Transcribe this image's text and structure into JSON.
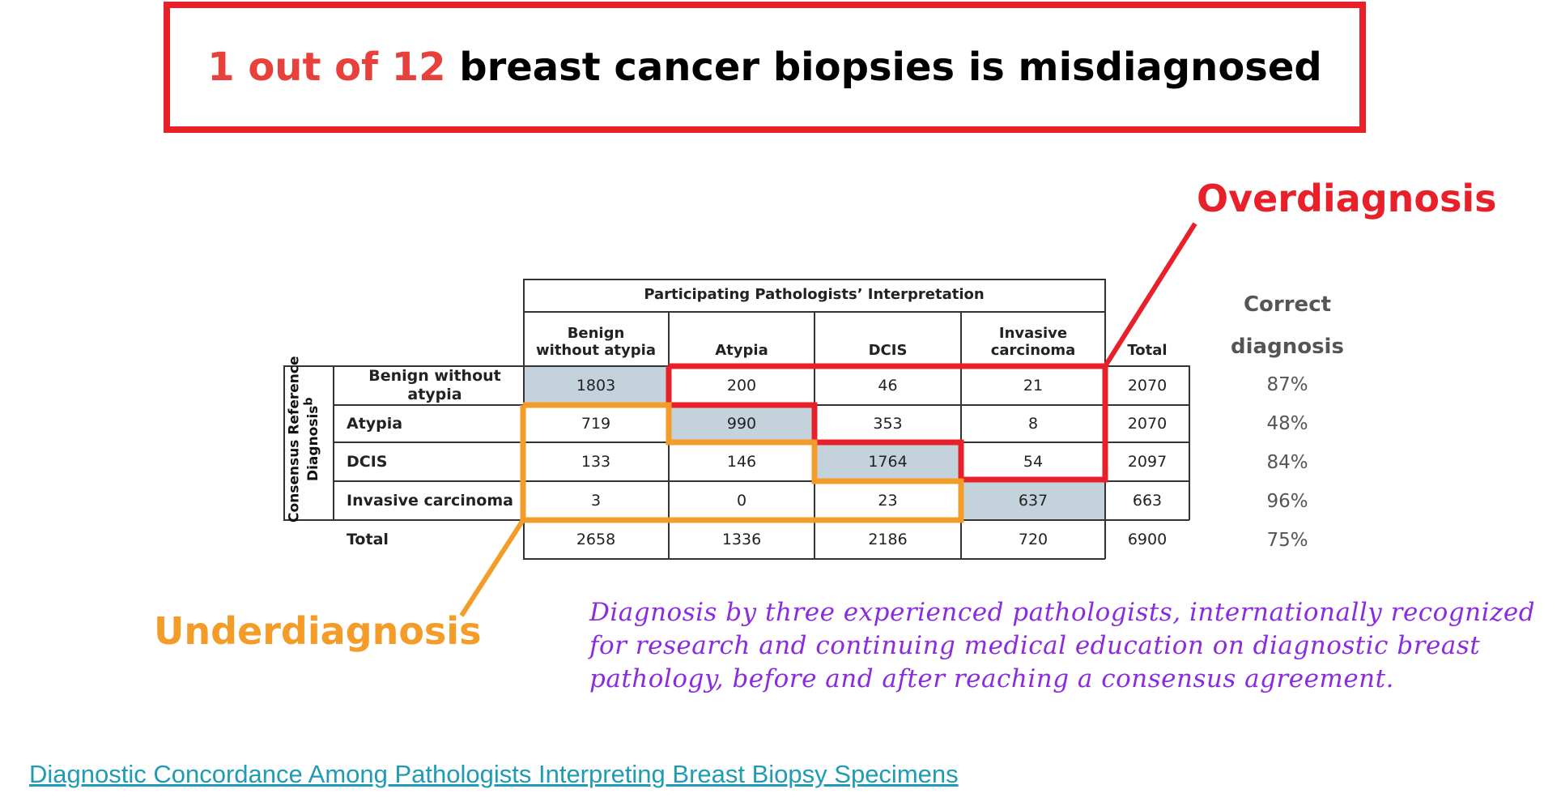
{
  "headline": {
    "highlight": "1 out of 12",
    "rest": "breast cancer biopsies is misdiagnosed"
  },
  "labels": {
    "overdiagnosis": "Overdiagnosis",
    "underdiagnosis": "Underdiagnosis",
    "correct_line1": "Correct",
    "correct_line2": "diagnosis"
  },
  "colors": {
    "red": "#e8202a",
    "orange": "#f39c28",
    "purple": "#8a2be2",
    "link": "#1f9bb5",
    "shaded_cell": "#c4d3db"
  },
  "table": {
    "group_header": "Participating Pathologists’ Interpretation",
    "side_label_line1": "Consensus Reference",
    "side_label_line2": "Diagnosis",
    "side_label_sup": "b",
    "columns": [
      {
        "line1": "Benign",
        "line2": "without atypia"
      },
      {
        "line1": "",
        "line2": "Atypia"
      },
      {
        "line1": "",
        "line2": "DCIS"
      },
      {
        "line1": "Invasive",
        "line2": "carcinoma"
      }
    ],
    "total_header": "Total",
    "rows": [
      {
        "label": "Benign without atypia",
        "values": [
          "1803",
          "200",
          "46",
          "21"
        ],
        "total": "2070",
        "correct": "87%"
      },
      {
        "label": "Atypia",
        "values": [
          "719",
          "990",
          "353",
          "8"
        ],
        "total": "2070",
        "correct": "48%"
      },
      {
        "label": "DCIS",
        "values": [
          "133",
          "146",
          "1764",
          "54"
        ],
        "total": "2097",
        "correct": "84%"
      },
      {
        "label": "Invasive carcinoma",
        "values": [
          "3",
          "0",
          "23",
          "637"
        ],
        "total": "663",
        "correct": "96%"
      }
    ],
    "total_row": {
      "label": "Total",
      "values": [
        "2658",
        "1336",
        "2186",
        "720"
      ],
      "total": "6900",
      "correct": "75%"
    }
  },
  "note": "Diagnosis by three experienced pathologists, internationally recognized for research and continuing medical education on diagnostic breast pathology, before and after reaching a consensus agreement.",
  "source_link": "Diagnostic Concordance Among Pathologists Interpreting Breast Biopsy Specimens"
}
